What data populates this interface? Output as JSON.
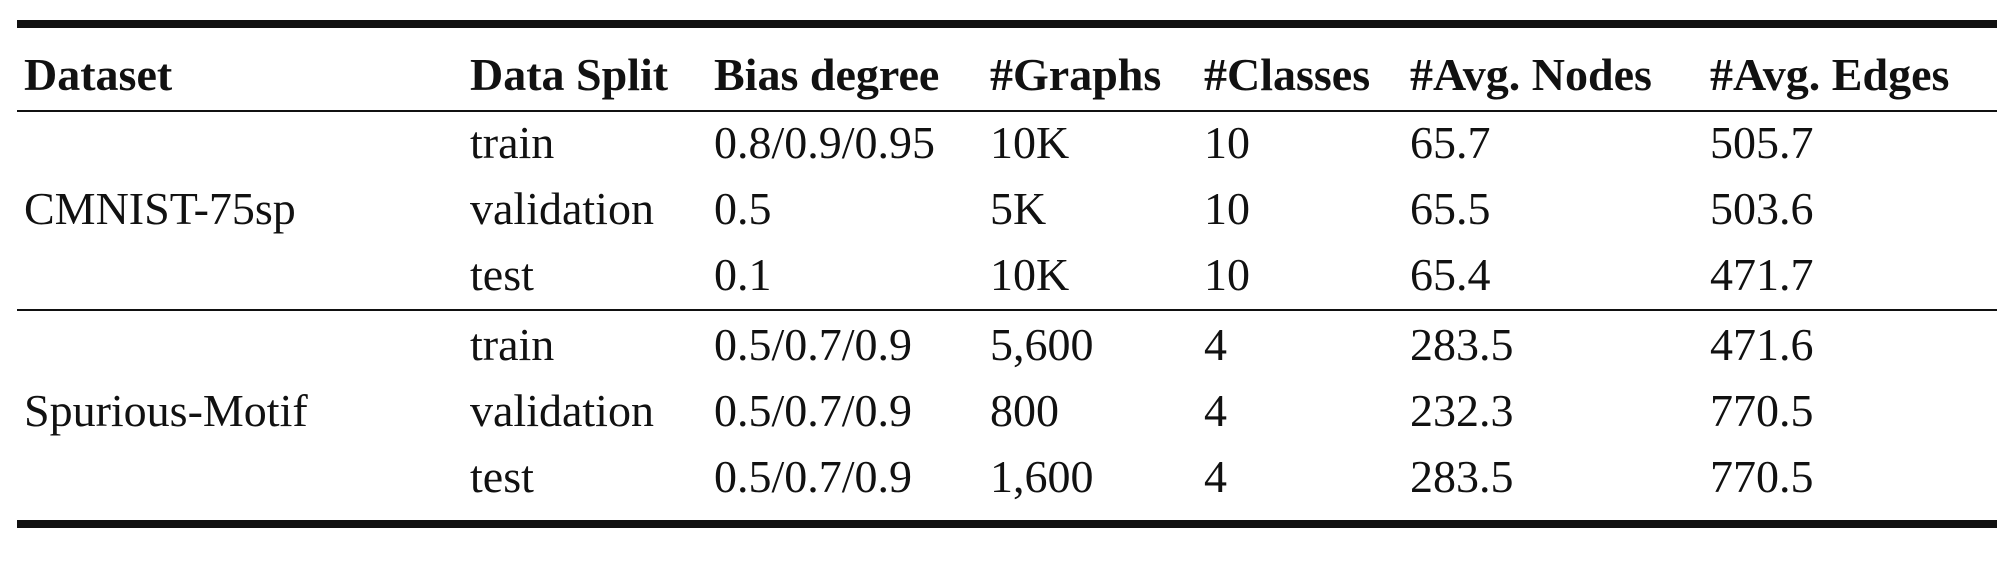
{
  "table": {
    "headers": [
      "Dataset",
      "Data Split",
      "Bias degree",
      "#Graphs",
      "#Classes",
      "#Avg. Nodes",
      "#Avg. Edges"
    ],
    "groups": [
      {
        "dataset": "CMNIST-75sp",
        "rows": [
          {
            "split": "train",
            "bias": "0.8/0.9/0.95",
            "graphs": "10K",
            "classes": "10",
            "nodes": "65.7",
            "edges": "505.7"
          },
          {
            "split": "validation",
            "bias": "0.5",
            "graphs": "5K",
            "classes": "10",
            "nodes": "65.5",
            "edges": "503.6"
          },
          {
            "split": "test",
            "bias": "0.1",
            "graphs": "10K",
            "classes": "10",
            "nodes": "65.4",
            "edges": "471.7"
          }
        ]
      },
      {
        "dataset": "Spurious-Motif",
        "rows": [
          {
            "split": "train",
            "bias": "0.5/0.7/0.9",
            "graphs": "5,600",
            "classes": "4",
            "nodes": "283.5",
            "edges": "471.6"
          },
          {
            "split": "validation",
            "bias": "0.5/0.7/0.9",
            "graphs": "800",
            "classes": "4",
            "nodes": "232.3",
            "edges": "770.5"
          },
          {
            "split": "test",
            "bias": "0.5/0.7/0.9",
            "graphs": "1,600",
            "classes": "4",
            "nodes": "283.5",
            "edges": "770.5"
          }
        ]
      }
    ]
  }
}
